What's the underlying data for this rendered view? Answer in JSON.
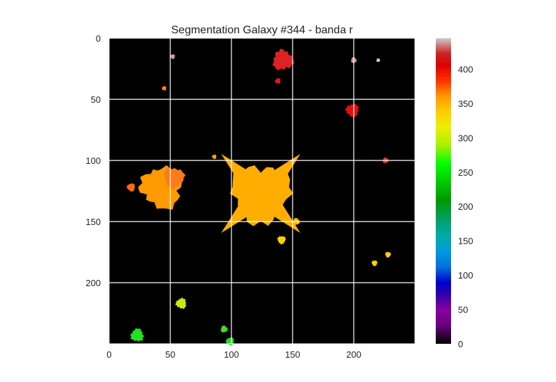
{
  "chart_data": {
    "type": "heatmap",
    "title": "Segmentation Galaxy #344 - banda r",
    "xlabel": "",
    "ylabel": "",
    "image_extent": {
      "x": [
        0,
        250
      ],
      "y": [
        0,
        250
      ]
    },
    "y_inverted": true,
    "x_ticks": [
      0,
      50,
      100,
      150,
      200
    ],
    "y_ticks": [
      0,
      50,
      100,
      150,
      200
    ],
    "grid": true,
    "grid_color": "#ffffff",
    "background_color": "#000000",
    "colormap": "nipy_spectral",
    "colorbar": {
      "min": 0,
      "max": 445,
      "ticks": [
        0,
        50,
        100,
        150,
        200,
        250,
        300,
        350,
        400
      ],
      "placement": "right"
    },
    "segments": [
      {
        "label": "central-galaxy",
        "cx": 124,
        "cy": 127,
        "r": 24,
        "value": 352,
        "color": "#ffae00"
      },
      {
        "label": "left-galaxy",
        "cx": 43,
        "cy": 122,
        "r": 17,
        "value": 360,
        "color": "#ff9a00"
      },
      {
        "label": "left-galaxy-core",
        "cx": 53,
        "cy": 114,
        "r": 8,
        "value": 368,
        "color": "#ff7a1a"
      },
      {
        "label": "left-satellite",
        "cx": 18,
        "cy": 122,
        "r": 3,
        "value": 372,
        "color": "#ff6a10"
      },
      {
        "label": "top-red-blob",
        "cx": 142,
        "cy": 18,
        "r": 8,
        "value": 410,
        "color": "#dd2222"
      },
      {
        "label": "small-red-dot",
        "cx": 138,
        "cy": 35,
        "r": 2,
        "value": 412,
        "color": "#e01818"
      },
      {
        "label": "right-red-blob",
        "cx": 199,
        "cy": 59,
        "r": 5,
        "value": 414,
        "color": "#e01010"
      },
      {
        "label": "small-red-right",
        "cx": 226,
        "cy": 100,
        "r": 2,
        "value": 412,
        "color": "#ff3333"
      },
      {
        "label": "pink-top-right",
        "cx": 200,
        "cy": 18,
        "r": 2,
        "value": 432,
        "color": "#d89090"
      },
      {
        "label": "pink-small-1",
        "cx": 52,
        "cy": 15,
        "r": 1.6,
        "value": 432,
        "color": "#d89898"
      },
      {
        "label": "pink-small-2",
        "cx": 220,
        "cy": 18,
        "r": 1.2,
        "value": 440,
        "color": "#cccccc"
      },
      {
        "label": "yellow-elongated",
        "cx": 141,
        "cy": 165,
        "r": 3,
        "value": 330,
        "color": "#ffd000"
      },
      {
        "label": "yellow-small",
        "cx": 217,
        "cy": 184,
        "r": 2,
        "value": 330,
        "color": "#ffd000"
      },
      {
        "label": "yellow-small-2",
        "cx": 228,
        "cy": 177,
        "r": 2,
        "value": 330,
        "color": "#ffcc00"
      },
      {
        "label": "yellow-green-blob",
        "cx": 59,
        "cy": 217,
        "r": 4,
        "value": 300,
        "color": "#c8e810"
      },
      {
        "label": "green-blob-bottom-left",
        "cx": 23,
        "cy": 243,
        "r": 5,
        "value": 265,
        "color": "#22e022"
      },
      {
        "label": "green-small",
        "cx": 94,
        "cy": 238,
        "r": 2.5,
        "value": 272,
        "color": "#44dd22"
      },
      {
        "label": "green-bottom",
        "cx": 99,
        "cy": 248,
        "r": 3,
        "value": 262,
        "color": "#22dd22"
      },
      {
        "label": "orange-dot-1",
        "cx": 45,
        "cy": 41,
        "r": 1.5,
        "value": 365,
        "color": "#ff8800"
      },
      {
        "label": "orange-dot-2",
        "cx": 86,
        "cy": 97,
        "r": 1.5,
        "value": 355,
        "color": "#ffa000"
      },
      {
        "label": "orange-dot-3",
        "cx": 153,
        "cy": 150,
        "r": 2.5,
        "value": 345,
        "color": "#ffbb00"
      }
    ]
  }
}
